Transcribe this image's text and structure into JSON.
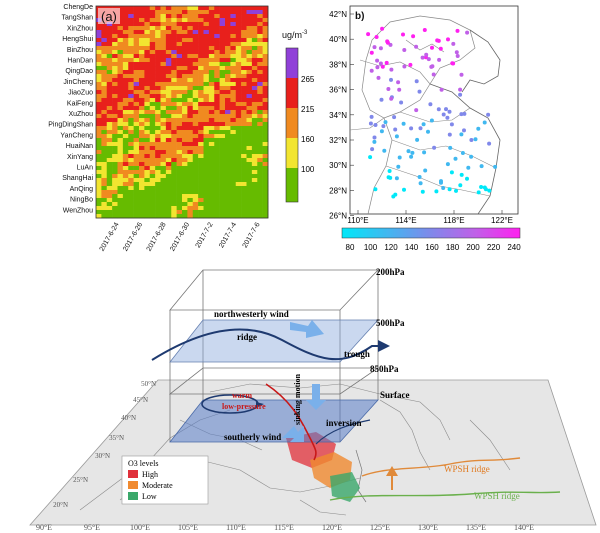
{
  "panel_a": {
    "label": "(a)",
    "cities": [
      "ChengDe",
      "TangShan",
      "XinZhou",
      "HengShui",
      "BinZhou",
      "HanDan",
      "QingDao",
      "JinCheng",
      "JiaoZuo",
      "KaiFeng",
      "XuZhou",
      "PingDingShan",
      "YanCheng",
      "HuaiNan",
      "XinYang",
      "LuAn",
      "ShangHai",
      "AnQing",
      "NingBo",
      "WenZhou"
    ],
    "dates": [
      "2017-6-24",
      "2017-6-26",
      "2017-6-28",
      "2017-6-30",
      "2017-7-2",
      "2017-7-4",
      "2017-7-6"
    ],
    "unit": "ug/m",
    "unit_sup": "-3",
    "colorbar_ticks": [
      "265",
      "215",
      "160",
      "100"
    ],
    "colors": {
      "green": "#66bb00",
      "yellow": "#f2e530",
      "orange": "#f08a20",
      "red": "#e8201c",
      "purple": "#9040d8"
    }
  },
  "panel_b": {
    "label": "b)",
    "lat_ticks": [
      "42°N",
      "40°N",
      "38°N",
      "36°N",
      "34°N",
      "32°N",
      "30°N",
      "28°N",
      "26°N"
    ],
    "lon_ticks": [
      "110°E",
      "114°E",
      "118°E",
      "122°E"
    ],
    "colorbar_ticks": [
      "80",
      "100",
      "120",
      "140",
      "160",
      "180",
      "200",
      "220",
      "240"
    ]
  },
  "panel_c": {
    "pressure_levels": [
      "200hPa",
      "500hPa",
      "850hPa",
      "Surface"
    ],
    "labels": {
      "northwesterly_wind": "northwesterly wind",
      "ridge": "ridge",
      "trough": "trough",
      "warm": "warm",
      "low_pressure": "low-pressure",
      "sinking_motion": "sinking motion",
      "southerly_wind": "southerly wind",
      "inversion": "inversion",
      "wpsh_ridge_orange": "WPSH ridge",
      "wpsh_ridge_green": "WPSH ridge"
    },
    "legend": {
      "title": "O3 levels",
      "items": [
        {
          "label": "High",
          "color": "#e0303a"
        },
        {
          "label": "Moderate",
          "color": "#f08a30"
        },
        {
          "label": "Low",
          "color": "#3aa86a"
        }
      ]
    },
    "lon_ticks": [
      "90°E",
      "95°E",
      "100°E",
      "105°E",
      "110°E",
      "115°E",
      "120°E",
      "125°E",
      "130°E",
      "135°E",
      "140°E"
    ],
    "lat_ticks": [
      "20°N",
      "25°N",
      "30°N",
      "35°N",
      "40°N",
      "45°N",
      "50°N"
    ]
  }
}
